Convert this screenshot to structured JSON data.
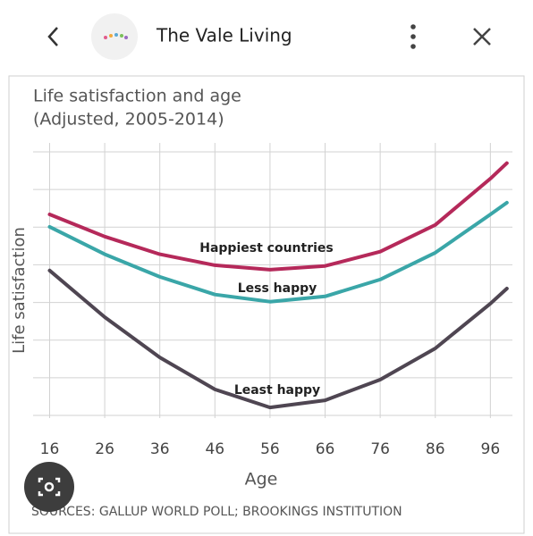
{
  "header": {
    "title": "The Vale Living"
  },
  "chart_data": {
    "type": "line",
    "title": "Life satisfaction and age",
    "subtitle": "(Adjusted, 2005-2014)",
    "y_label": "Life satisfaction",
    "x_label": "Age",
    "source": "SOURCES: GALLUP WORLD POLL; BROOKINGS INSTITUTION",
    "x": [
      16,
      26,
      36,
      46,
      56,
      66,
      76,
      86,
      96,
      99
    ],
    "series": [
      {
        "name": "Happiest countries",
        "color": "#b5295a",
        "values": [
          5.34,
          4.75,
          4.28,
          3.99,
          3.87,
          3.97,
          4.35,
          5.06,
          6.29,
          6.7
        ]
      },
      {
        "name": "Less happy",
        "color": "#3aa6a8",
        "values": [
          5.01,
          4.28,
          3.68,
          3.21,
          3.02,
          3.16,
          3.61,
          4.32,
          5.34,
          5.65
        ]
      },
      {
        "name": "Least happy",
        "color": "#4f4652",
        "values": [
          3.85,
          2.61,
          1.54,
          0.69,
          0.21,
          0.4,
          0.95,
          1.78,
          2.97,
          3.37
        ]
      }
    ],
    "xlim": [
      13,
      100
    ],
    "xticks": [
      16,
      26,
      36,
      46,
      56,
      66,
      76,
      86,
      96
    ],
    "ylim": [
      0,
      7
    ],
    "ygrid": [
      0,
      1,
      2,
      3,
      4,
      5,
      6,
      7
    ],
    "grid": true
  }
}
